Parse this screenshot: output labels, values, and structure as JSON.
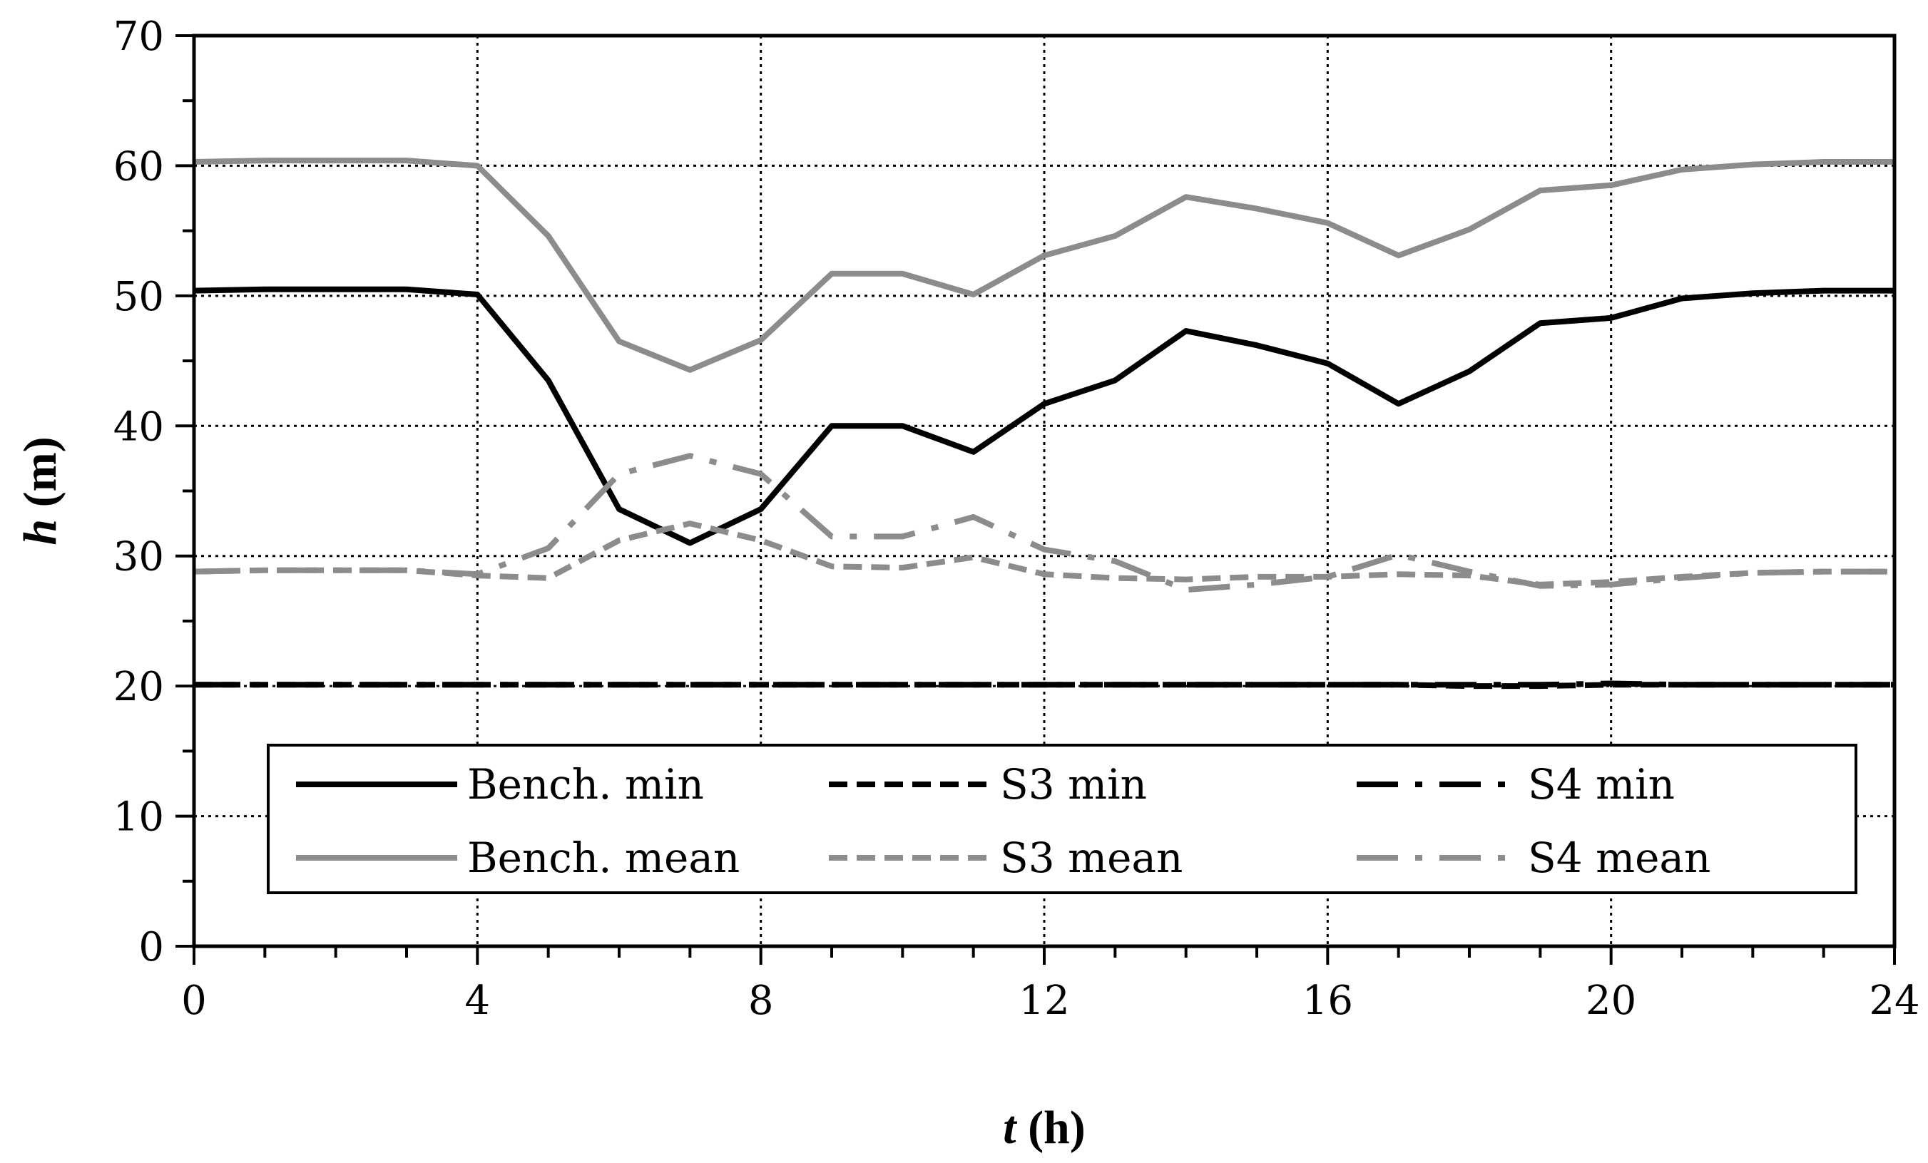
{
  "chart_data": {
    "type": "line",
    "xlabel_italic": "t",
    "xlabel_rest": " (h)",
    "ylabel_italic": "h",
    "ylabel_rest": " (m)",
    "xlim": [
      0,
      24
    ],
    "ylim": [
      0,
      70
    ],
    "x_ticks": [
      0,
      4,
      8,
      12,
      16,
      20,
      24
    ],
    "y_ticks": [
      0,
      10,
      20,
      30,
      40,
      50,
      60,
      70
    ],
    "x_minor_step": 1,
    "y_minor_step": 5,
    "grid": "dotted major gridlines",
    "legend_position": "bottom-center, inside plot",
    "x": [
      0,
      1,
      2,
      3,
      4,
      5,
      6,
      7,
      8,
      9,
      10,
      11,
      12,
      13,
      14,
      15,
      16,
      17,
      18,
      19,
      20,
      21,
      22,
      23,
      24
    ],
    "series": [
      {
        "name": "Bench. min",
        "color": "#000000",
        "style": "solid",
        "values": [
          50.4,
          50.5,
          50.5,
          50.5,
          50.1,
          43.5,
          33.6,
          31.0,
          33.6,
          40.0,
          40.0,
          38.0,
          41.7,
          43.5,
          47.3,
          46.2,
          44.8,
          41.7,
          44.2,
          47.9,
          48.3,
          49.8,
          50.2,
          50.4,
          50.4
        ]
      },
      {
        "name": "Bench. mean",
        "color": "#8c8c8c",
        "style": "solid",
        "values": [
          60.3,
          60.4,
          60.4,
          60.4,
          60.0,
          54.6,
          46.5,
          44.3,
          46.6,
          51.7,
          51.7,
          50.1,
          53.1,
          54.6,
          57.6,
          56.7,
          55.6,
          53.1,
          55.1,
          58.1,
          58.5,
          59.7,
          60.1,
          60.3,
          60.3
        ]
      },
      {
        "name": "S3 min",
        "color": "#000000",
        "style": "dashed",
        "values": [
          20.1,
          20.1,
          20.1,
          20.1,
          20.1,
          20.1,
          20.1,
          20.1,
          20.1,
          20.1,
          20.1,
          20.1,
          20.1,
          20.1,
          20.1,
          20.1,
          20.1,
          20.1,
          20.0,
          20.0,
          20.1,
          20.1,
          20.1,
          20.1,
          20.1
        ]
      },
      {
        "name": "S3 mean",
        "color": "#8c8c8c",
        "style": "dashed",
        "values": [
          28.8,
          28.9,
          28.9,
          28.9,
          28.5,
          28.3,
          31.2,
          32.5,
          31.2,
          29.2,
          29.1,
          29.9,
          28.6,
          28.3,
          28.2,
          28.4,
          28.4,
          28.6,
          28.5,
          27.8,
          28.0,
          28.4,
          28.7,
          28.8,
          28.8
        ]
      },
      {
        "name": "S4 min",
        "color": "#000000",
        "style": "dashdot",
        "values": [
          20.1,
          20.1,
          20.1,
          20.1,
          20.1,
          20.1,
          20.1,
          20.1,
          20.1,
          20.1,
          20.1,
          20.1,
          20.1,
          20.1,
          20.1,
          20.1,
          20.1,
          20.1,
          20.1,
          20.1,
          20.2,
          20.1,
          20.1,
          20.1,
          20.1
        ]
      },
      {
        "name": "S4 mean",
        "color": "#8c8c8c",
        "style": "dashdot",
        "values": [
          28.8,
          28.9,
          28.9,
          28.9,
          28.6,
          30.6,
          36.3,
          37.7,
          36.3,
          31.5,
          31.5,
          33.0,
          30.5,
          29.6,
          27.4,
          27.8,
          28.4,
          30.1,
          28.8,
          27.7,
          27.8,
          28.3,
          28.7,
          28.8,
          28.8
        ]
      }
    ]
  }
}
